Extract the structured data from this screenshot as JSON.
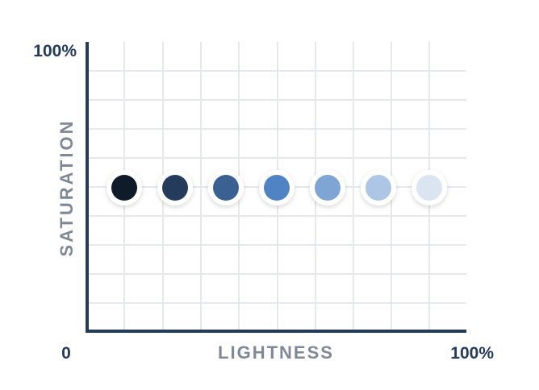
{
  "labels": {
    "y_max": "100%",
    "y_axis": "SATURATION",
    "x_min": "0",
    "x_axis": "LIGHTNESS",
    "x_max": "100%"
  },
  "colors": {
    "axis": "#243b5b",
    "grid": "#e5e8ec",
    "axis_label": "#7f8896",
    "swatch_ring": "#ffffff"
  },
  "swatches": [
    {
      "color": "#0f1b2b"
    },
    {
      "color": "#243b5b"
    },
    {
      "color": "#3b6193"
    },
    {
      "color": "#4f83c3"
    },
    {
      "color": "#7ea5d4"
    },
    {
      "color": "#aec6e5"
    },
    {
      "color": "#dbe5f1"
    }
  ]
}
